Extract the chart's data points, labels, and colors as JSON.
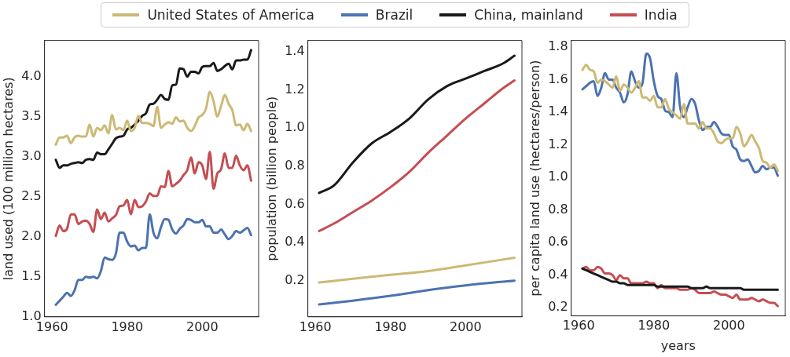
{
  "chart_data": [
    {
      "type": "line",
      "ylabel": "land used (100 million hectares)",
      "xlim": [
        1958,
        2015
      ],
      "xticks": [
        1960,
        1980,
        2000
      ],
      "ylim": [
        1.0,
        4.45
      ],
      "yticks": [
        {
          "value": 1,
          "label": "1.0"
        },
        1.5,
        {
          "value": 2,
          "label": "2.0"
        },
        2.5,
        {
          "value": 3,
          "label": "3.0"
        },
        3.5,
        {
          "value": 4,
          "label": "4.0"
        }
      ],
      "grid": false,
      "legend": "top",
      "marker": "none",
      "x": [
        1961,
        1962,
        1963,
        1964,
        1965,
        1966,
        1967,
        1968,
        1969,
        1970,
        1971,
        1972,
        1973,
        1974,
        1975,
        1976,
        1977,
        1978,
        1979,
        1980,
        1981,
        1982,
        1983,
        1984,
        1985,
        1986,
        1987,
        1988,
        1989,
        1990,
        1991,
        1992,
        1993,
        1994,
        1995,
        1996,
        1997,
        1998,
        1999,
        2000,
        2001,
        2002,
        2003,
        2004,
        2005,
        2006,
        2007,
        2008,
        2009,
        2010,
        2011,
        2012,
        2013
      ],
      "series": [
        {
          "name": "United States of America",
          "color": "#ccb974",
          "values": [
            3.15,
            3.24,
            3.24,
            3.26,
            3.17,
            3.24,
            3.26,
            3.25,
            3.25,
            3.4,
            3.25,
            3.36,
            3.33,
            3.39,
            3.29,
            3.52,
            3.34,
            3.36,
            3.33,
            3.45,
            3.32,
            3.36,
            3.51,
            3.42,
            3.42,
            3.41,
            3.38,
            3.62,
            3.36,
            3.4,
            3.43,
            3.41,
            3.49,
            3.44,
            3.45,
            3.36,
            3.32,
            3.38,
            3.49,
            3.52,
            3.6,
            3.81,
            3.69,
            3.5,
            3.63,
            3.77,
            3.66,
            3.58,
            3.39,
            3.4,
            3.33,
            3.41,
            3.32
          ]
        },
        {
          "name": "Brazil",
          "color": "#4c72b0",
          "values": [
            1.15,
            1.2,
            1.25,
            1.3,
            1.26,
            1.33,
            1.46,
            1.46,
            1.5,
            1.49,
            1.5,
            1.48,
            1.57,
            1.74,
            1.72,
            1.71,
            1.79,
            2.05,
            2.05,
            1.94,
            1.88,
            1.89,
            1.83,
            1.86,
            1.86,
            2.28,
            2.05,
            1.98,
            2.12,
            2.22,
            2.21,
            2.09,
            2.04,
            2.1,
            2.14,
            2.22,
            2.21,
            2.18,
            2.18,
            2.21,
            2.13,
            2.13,
            2.05,
            2.05,
            2.09,
            2.03,
            1.97,
            2.01,
            2.07,
            2.05,
            2.08,
            2.11,
            2.02
          ]
        },
        {
          "name": "China, mainland",
          "color": "#1a1a1a",
          "values": [
            2.96,
            2.86,
            2.89,
            2.89,
            2.91,
            2.92,
            2.93,
            2.92,
            2.96,
            2.97,
            2.96,
            3.05,
            3.03,
            3.03,
            3.09,
            3.16,
            3.23,
            3.25,
            3.26,
            3.34,
            3.36,
            3.4,
            3.45,
            3.51,
            3.54,
            3.65,
            3.66,
            3.71,
            3.77,
            3.72,
            3.71,
            3.89,
            3.9,
            4.1,
            4.09,
            4.0,
            4.06,
            4.06,
            4.04,
            4.12,
            4.13,
            4.13,
            4.17,
            4.07,
            4.09,
            4.13,
            4.16,
            4.09,
            4.2,
            4.2,
            4.21,
            4.21,
            4.33
          ]
        },
        {
          "name": "India",
          "color": "#c44e52",
          "values": [
            2.01,
            2.14,
            2.07,
            2.1,
            2.28,
            2.28,
            2.16,
            2.19,
            2.2,
            2.16,
            2.06,
            2.34,
            2.22,
            2.3,
            2.19,
            2.23,
            2.27,
            2.38,
            2.39,
            2.46,
            2.28,
            2.46,
            2.37,
            2.38,
            2.44,
            2.54,
            2.51,
            2.51,
            2.63,
            2.62,
            2.82,
            2.63,
            2.66,
            2.7,
            2.77,
            2.83,
            2.99,
            2.79,
            2.93,
            2.89,
            2.72,
            3.06,
            2.6,
            2.79,
            2.84,
            3.04,
            2.86,
            2.86,
            3.01,
            2.89,
            2.83,
            2.89,
            2.7
          ]
        }
      ]
    },
    {
      "type": "line",
      "ylabel": "population (billion people)",
      "xlim": [
        1958,
        2015
      ],
      "xticks": [
        1960,
        1980,
        2000
      ],
      "ylim": [
        0.01,
        1.46
      ],
      "yticks": [
        0.2,
        0.4,
        0.6,
        0.8,
        {
          "value": 1,
          "label": "1.0"
        },
        1.2,
        1.4
      ],
      "grid": false,
      "marker": "none",
      "series": [
        {
          "color": "#ccb974",
          "x": [
            1961,
            1970,
            1980,
            1990,
            2000,
            2013
          ],
          "values": [
            0.19,
            0.21,
            0.23,
            0.25,
            0.28,
            0.32
          ]
        },
        {
          "color": "#4c72b0",
          "x": [
            1961,
            1970,
            1980,
            1990,
            2000,
            2013
          ],
          "values": [
            0.075,
            0.095,
            0.12,
            0.15,
            0.175,
            0.2
          ]
        },
        {
          "color": "#1a1a1a",
          "x": [
            1961,
            1965,
            1970,
            1975,
            1980,
            1985,
            1990,
            1995,
            2000,
            2005,
            2010,
            2013
          ],
          "values": [
            0.66,
            0.7,
            0.82,
            0.92,
            0.98,
            1.05,
            1.15,
            1.22,
            1.26,
            1.3,
            1.34,
            1.38
          ]
        },
        {
          "color": "#c44e52",
          "x": [
            1961,
            1965,
            1970,
            1975,
            1980,
            1985,
            1990,
            1995,
            2000,
            2005,
            2010,
            2013
          ],
          "values": [
            0.46,
            0.5,
            0.56,
            0.62,
            0.69,
            0.77,
            0.87,
            0.96,
            1.05,
            1.13,
            1.21,
            1.25
          ]
        }
      ]
    },
    {
      "type": "line",
      "xlabel": "years",
      "ylabel": "per capita land use (hectares/person)",
      "xlim": [
        1958,
        2015
      ],
      "xticks": [
        1960,
        1980,
        2000
      ],
      "ylim": [
        0.15,
        1.84
      ],
      "yticks": [
        0.2,
        0.4,
        0.6,
        0.8,
        {
          "value": 1,
          "label": "1.0"
        },
        1.2,
        1.4,
        1.6,
        1.8
      ],
      "grid": false,
      "marker": "none",
      "x": [
        1961,
        1962,
        1963,
        1964,
        1965,
        1966,
        1967,
        1968,
        1969,
        1970,
        1971,
        1972,
        1973,
        1974,
        1975,
        1976,
        1977,
        1978,
        1979,
        1980,
        1981,
        1982,
        1983,
        1984,
        1985,
        1986,
        1987,
        1988,
        1989,
        1990,
        1991,
        1992,
        1993,
        1994,
        1995,
        1996,
        1997,
        1998,
        1999,
        2000,
        2001,
        2002,
        2003,
        2004,
        2005,
        2006,
        2007,
        2008,
        2009,
        2010,
        2011,
        2012,
        2013
      ],
      "series": [
        {
          "color": "#ccb974",
          "values": [
            1.66,
            1.69,
            1.66,
            1.65,
            1.58,
            1.6,
            1.59,
            1.57,
            1.55,
            1.62,
            1.53,
            1.57,
            1.55,
            1.52,
            1.55,
            1.59,
            1.49,
            1.49,
            1.47,
            1.5,
            1.43,
            1.43,
            1.48,
            1.42,
            1.4,
            1.38,
            1.36,
            1.45,
            1.33,
            1.33,
            1.33,
            1.3,
            1.34,
            1.3,
            1.3,
            1.27,
            1.22,
            1.21,
            1.23,
            1.24,
            1.24,
            1.31,
            1.27,
            1.19,
            1.22,
            1.26,
            1.22,
            1.18,
            1.1,
            1.09,
            1.06,
            1.08,
            1.04
          ]
        },
        {
          "color": "#4c72b0",
          "values": [
            1.54,
            1.56,
            1.58,
            1.59,
            1.5,
            1.55,
            1.64,
            1.6,
            1.6,
            1.55,
            1.52,
            1.46,
            1.51,
            1.65,
            1.59,
            1.55,
            1.58,
            1.76,
            1.73,
            1.59,
            1.5,
            1.48,
            1.41,
            1.4,
            1.37,
            1.64,
            1.43,
            1.37,
            1.43,
            1.48,
            1.45,
            1.35,
            1.29,
            1.31,
            1.31,
            1.34,
            1.31,
            1.27,
            1.26,
            1.26,
            1.19,
            1.17,
            1.11,
            1.1,
            1.11,
            1.07,
            1.03,
            1.04,
            1.07,
            1.05,
            1.06,
            1.06,
            1.01
          ]
        },
        {
          "color": "#1a1a1a",
          "values": [
            0.44,
            0.43,
            0.42,
            0.41,
            0.4,
            0.39,
            0.38,
            0.37,
            0.36,
            0.36,
            0.35,
            0.35,
            0.34,
            0.34,
            0.34,
            0.34,
            0.34,
            0.34,
            0.34,
            0.34,
            0.33,
            0.33,
            0.33,
            0.33,
            0.33,
            0.33,
            0.33,
            0.33,
            0.33,
            0.32,
            0.32,
            0.32,
            0.32,
            0.33,
            0.32,
            0.32,
            0.32,
            0.32,
            0.32,
            0.32,
            0.32,
            0.32,
            0.32,
            0.31,
            0.31,
            0.31,
            0.31,
            0.31,
            0.31,
            0.31,
            0.31,
            0.31,
            0.31
          ]
        },
        {
          "color": "#c44e52",
          "values": [
            0.44,
            0.45,
            0.43,
            0.43,
            0.45,
            0.44,
            0.41,
            0.41,
            0.4,
            0.37,
            0.4,
            0.38,
            0.38,
            0.35,
            0.35,
            0.35,
            0.35,
            0.36,
            0.35,
            0.35,
            0.32,
            0.34,
            0.32,
            0.32,
            0.32,
            0.32,
            0.31,
            0.31,
            0.31,
            0.32,
            0.31,
            0.29,
            0.29,
            0.29,
            0.29,
            0.3,
            0.29,
            0.28,
            0.28,
            0.27,
            0.26,
            0.28,
            0.25,
            0.25,
            0.25,
            0.26,
            0.25,
            0.24,
            0.25,
            0.24,
            0.23,
            0.23,
            0.21
          ]
        }
      ]
    }
  ]
}
